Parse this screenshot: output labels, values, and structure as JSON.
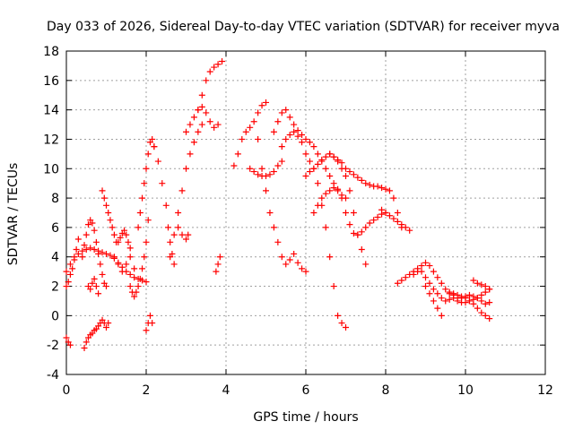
{
  "chart_data": {
    "type": "scatter",
    "title": "Day 033 of 2026, Sidereal Day-to-day VTEC variation (SDTVAR) for receiver myva",
    "xlabel": "GPS time / hours",
    "ylabel": "SDTVAR / TECUs",
    "xlim": [
      0,
      12
    ],
    "ylim": [
      -4,
      18
    ],
    "xticks": [
      0,
      2,
      4,
      6,
      8,
      10,
      12
    ],
    "yticks": [
      -4,
      -2,
      0,
      2,
      4,
      6,
      8,
      10,
      12,
      14,
      16,
      18
    ],
    "grid": true,
    "marker": "+",
    "color": "#ff0000",
    "series": [
      {
        "name": "s1",
        "x": [
          0.0,
          0.1,
          0.2,
          0.3,
          0.4,
          0.5,
          0.6,
          0.7,
          0.8,
          0.9,
          1.0,
          1.1,
          1.2,
          1.3,
          1.4,
          1.5,
          1.6,
          1.7,
          1.8,
          1.9,
          2.0
        ],
        "y": [
          3.0,
          3.5,
          4.0,
          4.2,
          4.4,
          4.5,
          4.6,
          4.5,
          4.4,
          4.3,
          4.2,
          4.1,
          3.9,
          3.6,
          3.3,
          3.0,
          2.8,
          2.6,
          2.5,
          2.4,
          2.3
        ]
      },
      {
        "name": "s2",
        "x": [
          0.0,
          0.05,
          0.1,
          0.15,
          0.2,
          0.25,
          0.3
        ],
        "y": [
          2.0,
          2.3,
          2.8,
          3.2,
          3.8,
          4.5,
          5.2
        ]
      },
      {
        "name": "s3",
        "x": [
          0.0,
          0.05,
          0.1
        ],
        "y": [
          -1.5,
          -1.8,
          -2.0
        ]
      },
      {
        "name": "s4",
        "x": [
          0.45,
          0.5,
          0.55,
          0.6,
          0.65,
          0.7,
          0.75,
          0.8,
          0.85,
          0.9,
          0.95,
          1.0,
          1.05
        ],
        "y": [
          -2.2,
          -1.8,
          -1.5,
          -1.3,
          -1.2,
          -1.0,
          -0.9,
          -0.7,
          -0.5,
          -0.3,
          -0.5,
          -0.8,
          -0.5
        ]
      },
      {
        "name": "s5",
        "x": [
          0.4,
          0.45,
          0.5,
          0.55,
          0.6,
          0.65,
          0.7,
          0.75,
          0.8,
          0.85,
          0.9,
          0.95,
          1.0
        ],
        "y": [
          4.0,
          4.8,
          5.5,
          6.2,
          6.5,
          6.3,
          5.8,
          5.0,
          4.2,
          3.5,
          2.8,
          2.2,
          2.0
        ]
      },
      {
        "name": "s6",
        "x": [
          0.55,
          0.6,
          0.65,
          0.7,
          0.75,
          0.8
        ],
        "y": [
          2.0,
          1.8,
          2.2,
          2.5,
          2.0,
          1.5
        ]
      },
      {
        "name": "s7",
        "x": [
          0.9,
          0.95,
          1.0,
          1.05,
          1.1,
          1.15,
          1.2,
          1.25
        ],
        "y": [
          8.5,
          8.0,
          7.5,
          7.0,
          6.5,
          6.0,
          5.5,
          5.0
        ]
      },
      {
        "name": "s8",
        "x": [
          1.2,
          1.3,
          1.4,
          1.5,
          1.6,
          1.7
        ],
        "y": [
          4.0,
          3.5,
          3.0,
          3.5,
          4.0,
          3.2
        ]
      },
      {
        "name": "s9",
        "x": [
          1.3,
          1.35,
          1.4,
          1.45,
          1.5,
          1.55,
          1.6
        ],
        "y": [
          5.0,
          5.3,
          5.6,
          5.8,
          5.5,
          5.0,
          4.6
        ]
      },
      {
        "name": "s10",
        "x": [
          1.6,
          1.65,
          1.7,
          1.75,
          1.8,
          1.85,
          1.9,
          1.95,
          2.0,
          2.05
        ],
        "y": [
          2.0,
          1.6,
          1.3,
          1.6,
          2.0,
          2.5,
          3.2,
          4.0,
          5.0,
          6.5
        ]
      },
      {
        "name": "s11",
        "x": [
          1.8,
          1.85,
          1.9,
          1.95,
          2.0,
          2.05,
          2.1,
          2.15,
          2.2
        ],
        "y": [
          6.0,
          7.0,
          8.0,
          9.0,
          10.0,
          11.0,
          11.8,
          12.0,
          11.5
        ]
      },
      {
        "name": "s12",
        "x": [
          2.0,
          2.05,
          2.1,
          2.15
        ],
        "y": [
          -1.0,
          -0.5,
          0.0,
          -0.5
        ]
      },
      {
        "name": "s13",
        "x": [
          2.2,
          2.3,
          2.4,
          2.5,
          2.55,
          2.6,
          2.65,
          2.7
        ],
        "y": [
          11.5,
          10.5,
          9.0,
          7.5,
          6.0,
          5.0,
          4.2,
          3.5
        ]
      },
      {
        "name": "s14",
        "x": [
          2.6,
          2.7,
          2.8,
          2.9,
          3.0,
          3.1,
          3.2,
          3.3,
          3.4
        ],
        "y": [
          4.0,
          5.5,
          7.0,
          8.5,
          10.0,
          11.0,
          11.8,
          12.5,
          13.0
        ]
      },
      {
        "name": "s15",
        "x": [
          2.8,
          2.9,
          3.0,
          3.05
        ],
        "y": [
          6.0,
          5.5,
          5.2,
          5.5
        ]
      },
      {
        "name": "s16",
        "x": [
          3.0,
          3.1,
          3.2,
          3.3,
          3.4,
          3.5,
          3.6,
          3.7,
          3.8
        ],
        "y": [
          12.5,
          13.0,
          13.5,
          14.0,
          14.2,
          13.8,
          13.2,
          12.8,
          13.0
        ]
      },
      {
        "name": "s17",
        "x": [
          3.3,
          3.4,
          3.5,
          3.6,
          3.7,
          3.8,
          3.9
        ],
        "y": [
          14.0,
          15.0,
          16.0,
          16.6,
          16.9,
          17.1,
          17.3
        ]
      },
      {
        "name": "s18",
        "x": [
          3.75,
          3.8,
          3.85
        ],
        "y": [
          3.0,
          3.5,
          4.0
        ]
      },
      {
        "name": "s19",
        "x": [
          4.2,
          4.3,
          4.4,
          4.5,
          4.6,
          4.7,
          4.8,
          4.9,
          5.0
        ],
        "y": [
          10.2,
          11.0,
          12.0,
          12.5,
          12.8,
          13.2,
          13.8,
          14.3,
          14.5
        ]
      },
      {
        "name": "s20",
        "x": [
          4.6,
          4.7,
          4.8,
          4.9,
          5.0,
          5.1,
          5.2,
          5.3,
          5.4
        ],
        "y": [
          10.0,
          9.8,
          9.6,
          9.5,
          9.5,
          9.6,
          9.8,
          10.2,
          10.5
        ]
      },
      {
        "name": "s21",
        "x": [
          4.8,
          4.9,
          5.0,
          5.1,
          5.2,
          5.3,
          5.4,
          5.5,
          5.6,
          5.7,
          5.8,
          5.9,
          6.0
        ],
        "y": [
          12.0,
          10.0,
          8.5,
          7.0,
          6.0,
          5.0,
          4.0,
          3.5,
          3.8,
          4.2,
          3.6,
          3.2,
          3.0
        ]
      },
      {
        "name": "s22",
        "x": [
          5.2,
          5.3,
          5.4,
          5.5,
          5.6,
          5.7,
          5.8,
          5.9,
          6.0,
          6.1,
          6.2,
          6.3,
          6.4,
          6.5,
          6.6,
          6.7,
          6.8,
          6.9,
          7.0
        ],
        "y": [
          12.5,
          13.2,
          13.8,
          14.0,
          13.5,
          13.0,
          12.6,
          12.3,
          12.0,
          11.8,
          11.5,
          11.0,
          10.5,
          10.0,
          9.5,
          9.0,
          8.6,
          8.2,
          8.0
        ]
      },
      {
        "name": "s23",
        "x": [
          5.4,
          5.5,
          5.6,
          5.7,
          5.8,
          5.9,
          6.0,
          6.1,
          6.2,
          6.3,
          6.4,
          6.5,
          6.6,
          6.7,
          6.8,
          6.9,
          7.0
        ],
        "y": [
          11.5,
          12.0,
          12.3,
          12.5,
          12.2,
          11.8,
          11.0,
          10.5,
          10.0,
          9.0,
          7.5,
          6.0,
          4.0,
          2.0,
          0.0,
          -0.5,
          -0.8
        ]
      },
      {
        "name": "s24",
        "x": [
          6.0,
          6.1,
          6.2,
          6.3,
          6.4,
          6.5,
          6.6,
          6.7,
          6.8,
          6.9,
          7.0,
          7.1,
          7.2,
          7.3,
          7.4,
          7.5
        ],
        "y": [
          9.5,
          9.8,
          10.0,
          10.3,
          10.6,
          10.8,
          11.0,
          10.8,
          10.5,
          10.0,
          9.5,
          8.5,
          7.0,
          5.5,
          4.5,
          3.5
        ]
      },
      {
        "name": "s25",
        "x": [
          6.2,
          6.3,
          6.4,
          6.5,
          6.6,
          6.7,
          6.8,
          6.9,
          7.0,
          7.1,
          7.2,
          7.3,
          7.4,
          7.5,
          7.6,
          7.7,
          7.8,
          7.9,
          8.0
        ],
        "y": [
          7.0,
          7.5,
          8.0,
          8.3,
          8.5,
          8.7,
          8.5,
          8.0,
          7.0,
          6.2,
          5.6,
          5.5,
          5.7,
          6.0,
          6.3,
          6.5,
          6.7,
          6.9,
          7.0
        ]
      },
      {
        "name": "s26",
        "x": [
          6.6,
          6.7,
          6.8,
          6.9,
          7.0,
          7.1,
          7.2,
          7.3,
          7.4,
          7.5,
          7.6,
          7.7,
          7.8,
          7.9,
          8.0,
          8.1,
          8.2,
          8.3,
          8.4
        ],
        "y": [
          11.0,
          10.8,
          10.6,
          10.4,
          10.0,
          9.8,
          9.6,
          9.4,
          9.2,
          9.0,
          8.9,
          8.8,
          8.8,
          8.7,
          8.6,
          8.5,
          8.0,
          7.0,
          6.0
        ]
      },
      {
        "name": "s27",
        "x": [
          7.9,
          8.0,
          8.1,
          8.2,
          8.3,
          8.4,
          8.5,
          8.6
        ],
        "y": [
          7.2,
          7.0,
          6.8,
          6.6,
          6.4,
          6.2,
          6.0,
          5.8
        ]
      },
      {
        "name": "s28",
        "x": [
          8.3,
          8.4,
          8.5,
          8.6,
          8.7,
          8.8,
          8.9,
          9.0,
          9.1,
          9.2,
          9.3,
          9.4,
          9.5,
          9.6,
          9.7,
          9.8,
          9.9,
          10.0,
          10.1,
          10.2,
          10.3,
          10.4,
          10.5,
          10.6
        ],
        "y": [
          2.2,
          2.4,
          2.6,
          2.8,
          3.0,
          3.2,
          3.0,
          2.6,
          2.2,
          1.8,
          1.5,
          1.2,
          1.0,
          1.1,
          1.2,
          1.0,
          0.9,
          0.9,
          1.0,
          1.1,
          1.2,
          1.0,
          0.8,
          0.9
        ]
      },
      {
        "name": "s29",
        "x": [
          8.7,
          8.8,
          8.9,
          9.0,
          9.1,
          9.2,
          9.3,
          9.4,
          9.5,
          9.6,
          9.7,
          9.8,
          9.9,
          10.0,
          10.1,
          10.2,
          10.3,
          10.4,
          10.5,
          10.6
        ],
        "y": [
          2.8,
          3.0,
          3.4,
          3.6,
          3.4,
          3.0,
          2.6,
          2.2,
          1.8,
          1.6,
          1.4,
          1.2,
          1.2,
          1.3,
          1.4,
          1.3,
          1.2,
          1.4,
          1.6,
          1.8
        ]
      },
      {
        "name": "s30",
        "x": [
          9.0,
          9.1,
          9.2,
          9.3,
          9.4
        ],
        "y": [
          2.0,
          1.5,
          1.0,
          0.5,
          0.0
        ]
      },
      {
        "name": "s31",
        "x": [
          9.6,
          9.7,
          9.8,
          9.9,
          10.0,
          10.1,
          10.2,
          10.3,
          10.4,
          10.5,
          10.6
        ],
        "y": [
          1.5,
          1.5,
          1.4,
          1.3,
          1.2,
          1.0,
          0.8,
          0.5,
          0.2,
          0.0,
          -0.2
        ]
      },
      {
        "name": "s32",
        "x": [
          10.2,
          10.3,
          10.4,
          10.5,
          10.6
        ],
        "y": [
          2.4,
          2.2,
          2.1,
          2.0,
          1.8
        ]
      }
    ]
  }
}
